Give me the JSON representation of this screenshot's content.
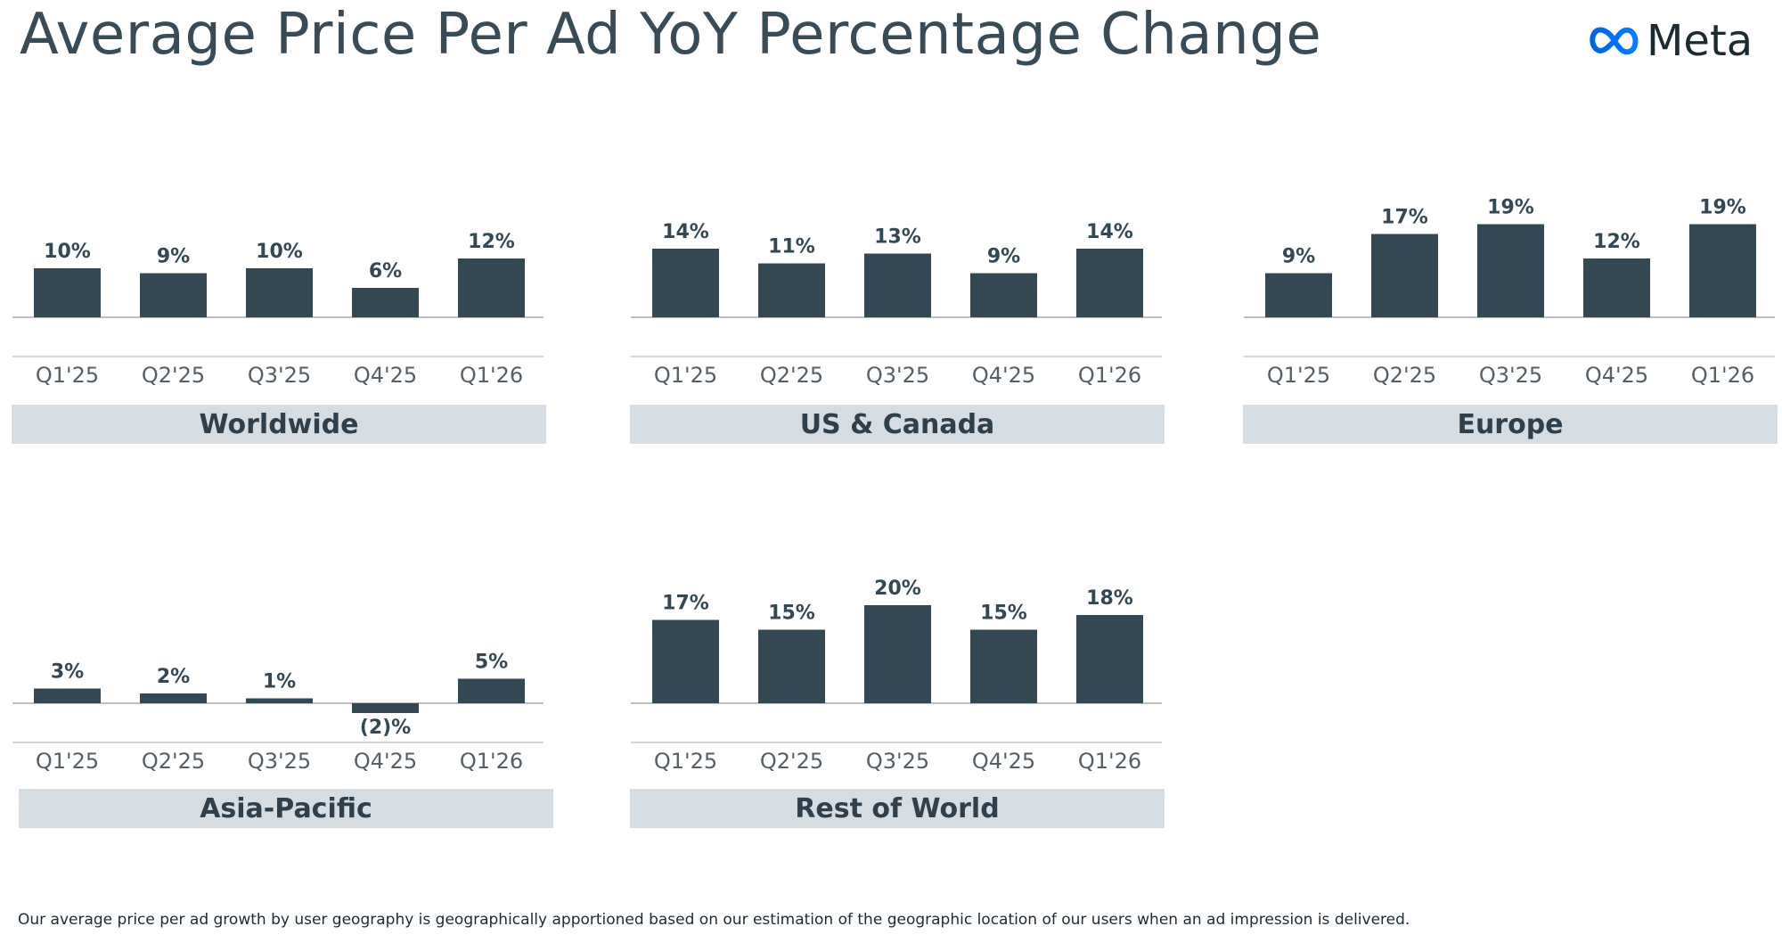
{
  "title": "Average Price Per Ad YoY Percentage Change",
  "brand": {
    "name": "Meta",
    "logo_icon": "meta-infinity-logo",
    "logo_color": "#0866ff"
  },
  "colors": {
    "bar": "#344854",
    "label_band": "#d5dce2",
    "text": "#344854"
  },
  "footnote": "Our average price per ad growth by user geography is geographically apportioned based on our estimation of the geographic location of our users when an ad impression is delivered.",
  "chart_data": [
    {
      "type": "bar",
      "title": "Worldwide",
      "categories": [
        "Q1'25",
        "Q2'25",
        "Q3'25",
        "Q4'25",
        "Q1'26"
      ],
      "values": [
        10,
        9,
        10,
        6,
        12
      ],
      "labels": [
        "10%",
        "9%",
        "10%",
        "6%",
        "12%"
      ],
      "unit": "%",
      "ylim": [
        -5,
        25
      ],
      "grid": false,
      "legend": "none"
    },
    {
      "type": "bar",
      "title": "US & Canada",
      "categories": [
        "Q1'25",
        "Q2'25",
        "Q3'25",
        "Q4'25",
        "Q1'26"
      ],
      "values": [
        14,
        11,
        13,
        9,
        14
      ],
      "labels": [
        "14%",
        "11%",
        "13%",
        "9%",
        "14%"
      ],
      "unit": "%",
      "ylim": [
        -5,
        25
      ],
      "grid": false,
      "legend": "none"
    },
    {
      "type": "bar",
      "title": "Europe",
      "categories": [
        "Q1'25",
        "Q2'25",
        "Q3'25",
        "Q4'25",
        "Q1'26"
      ],
      "values": [
        9,
        17,
        19,
        12,
        19
      ],
      "labels": [
        "9%",
        "17%",
        "19%",
        "12%",
        "19%"
      ],
      "unit": "%",
      "ylim": [
        -5,
        25
      ],
      "grid": false,
      "legend": "none"
    },
    {
      "type": "bar",
      "title": "Asia-Pacific",
      "categories": [
        "Q1'25",
        "Q2'25",
        "Q3'25",
        "Q4'25",
        "Q1'26"
      ],
      "values": [
        3,
        2,
        1,
        -2,
        5
      ],
      "labels": [
        "3%",
        "2%",
        "1%",
        "(2)%",
        "5%"
      ],
      "unit": "%",
      "ylim": [
        -5,
        25
      ],
      "grid": false,
      "legend": "none"
    },
    {
      "type": "bar",
      "title": "Rest of World",
      "categories": [
        "Q1'25",
        "Q2'25",
        "Q3'25",
        "Q4'25",
        "Q1'26"
      ],
      "values": [
        17,
        15,
        20,
        15,
        18
      ],
      "labels": [
        "17%",
        "15%",
        "20%",
        "15%",
        "18%"
      ],
      "unit": "%",
      "ylim": [
        -5,
        25
      ],
      "grid": false,
      "legend": "none"
    }
  ]
}
